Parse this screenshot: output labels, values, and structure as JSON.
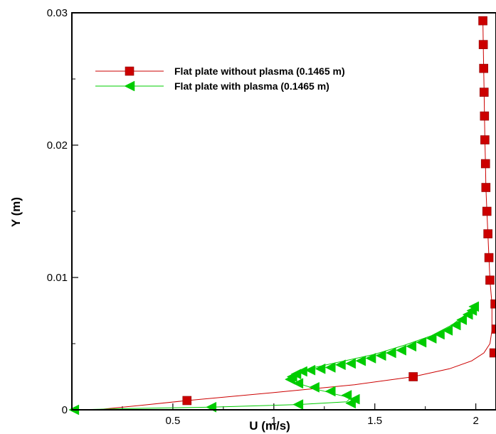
{
  "chart_data": {
    "type": "line",
    "title": "",
    "xlabel": "U (m/s)",
    "ylabel": "Y (m)",
    "xlim": [
      0,
      2.1
    ],
    "ylim": [
      0,
      0.03
    ],
    "xticks": [
      0.5,
      1,
      1.5,
      2
    ],
    "xtick_labels": [
      "0.5",
      "1",
      "1.5",
      "2"
    ],
    "yticks": [
      0,
      0.01,
      0.02,
      0.03
    ],
    "ytick_labels": [
      "0",
      "0.01",
      "0.02",
      "0.03"
    ],
    "legend_position": "top-left",
    "series": [
      {
        "name": "Flat plate without plasma (0.1465 m)",
        "color": "#cc0000",
        "marker": "square",
        "line": [
          [
            0.12,
            0
          ],
          [
            0.35,
            0.00035
          ],
          [
            0.57,
            0.0007
          ],
          [
            1.0,
            0.0013
          ],
          [
            1.4,
            0.0019
          ],
          [
            1.69,
            0.0025
          ],
          [
            1.87,
            0.0031
          ],
          [
            1.98,
            0.0037
          ],
          [
            2.04,
            0.0043
          ],
          [
            2.07,
            0.005
          ],
          [
            2.08,
            0.006
          ],
          [
            2.08,
            0.008
          ],
          [
            2.07,
            0.0098
          ],
          [
            2.065,
            0.0115
          ],
          [
            2.06,
            0.0133
          ],
          [
            2.055,
            0.015
          ],
          [
            2.05,
            0.0168
          ],
          [
            2.048,
            0.0186
          ],
          [
            2.045,
            0.0204
          ],
          [
            2.043,
            0.0222
          ],
          [
            2.041,
            0.024
          ],
          [
            2.039,
            0.0258
          ],
          [
            2.037,
            0.0276
          ],
          [
            2.035,
            0.0294
          ]
        ],
        "markers": [
          [
            0.57,
            0.0007
          ],
          [
            1.69,
            0.0025
          ],
          [
            2.09,
            0.0043
          ],
          [
            2.1,
            0.0061
          ],
          [
            2.095,
            0.008
          ],
          [
            2.07,
            0.0098
          ],
          [
            2.065,
            0.0115
          ],
          [
            2.06,
            0.0133
          ],
          [
            2.055,
            0.015
          ],
          [
            2.05,
            0.0168
          ],
          [
            2.048,
            0.0186
          ],
          [
            2.045,
            0.0204
          ],
          [
            2.043,
            0.0222
          ],
          [
            2.041,
            0.024
          ],
          [
            2.039,
            0.0258
          ],
          [
            2.037,
            0.0276
          ],
          [
            2.035,
            0.0294
          ]
        ]
      },
      {
        "name": "Flat plate with plasma (0.1465 m)",
        "color": "#00cc00",
        "marker": "triangle-left",
        "line": [
          [
            0.01,
            0
          ],
          [
            0.3,
            0.0001
          ],
          [
            0.69,
            0.0002
          ],
          [
            1.12,
            0.0004
          ],
          [
            1.36,
            0.0006
          ],
          [
            1.38,
            0.0009
          ],
          [
            1.3,
            0.0012
          ],
          [
            1.2,
            0.0016
          ],
          [
            1.1,
            0.0021
          ],
          [
            1.08,
            0.0025
          ],
          [
            1.12,
            0.0029
          ],
          [
            1.2,
            0.0032
          ],
          [
            1.35,
            0.0037
          ],
          [
            1.5,
            0.0042
          ],
          [
            1.65,
            0.0049
          ],
          [
            1.78,
            0.0056
          ],
          [
            1.88,
            0.0064
          ],
          [
            1.95,
            0.0072
          ],
          [
            1.99,
            0.0078
          ]
        ],
        "markers": [
          [
            0.01,
            0.0
          ],
          [
            0.69,
            0.0002
          ],
          [
            1.12,
            0.0004
          ],
          [
            1.38,
            0.0005
          ],
          [
            1.4,
            0.0008
          ],
          [
            1.36,
            0.0011
          ],
          [
            1.28,
            0.0014
          ],
          [
            1.2,
            0.0017
          ],
          [
            1.12,
            0.002
          ],
          [
            1.08,
            0.0023
          ],
          [
            1.09,
            0.0025
          ],
          [
            1.11,
            0.0027
          ],
          [
            1.14,
            0.0029
          ],
          [
            1.18,
            0.003
          ],
          [
            1.23,
            0.0031
          ],
          [
            1.28,
            0.0032
          ],
          [
            1.33,
            0.0034
          ],
          [
            1.38,
            0.0035
          ],
          [
            1.43,
            0.0037
          ],
          [
            1.48,
            0.0039
          ],
          [
            1.53,
            0.0041
          ],
          [
            1.58,
            0.0043
          ],
          [
            1.63,
            0.0045
          ],
          [
            1.68,
            0.0048
          ],
          [
            1.73,
            0.0051
          ],
          [
            1.78,
            0.0054
          ],
          [
            1.82,
            0.0057
          ],
          [
            1.86,
            0.006
          ],
          [
            1.9,
            0.0064
          ],
          [
            1.93,
            0.0068
          ],
          [
            1.96,
            0.0072
          ],
          [
            1.98,
            0.0075
          ],
          [
            1.99,
            0.0078
          ]
        ]
      }
    ]
  }
}
